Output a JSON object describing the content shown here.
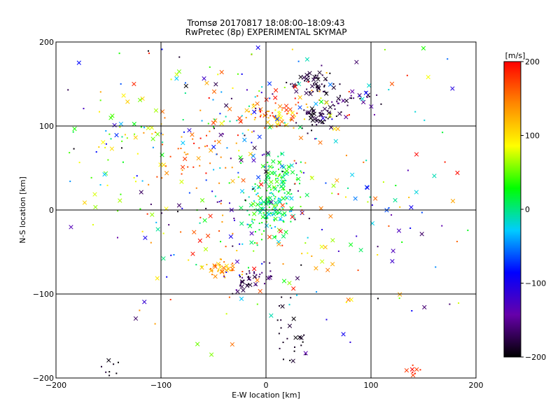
{
  "chart_data": {
    "type": "scatter",
    "title": "Tromsø 20170817 18:08:00–18:09:43",
    "subtitle": "RwPretec (8p) EXPERIMENTAL SKYMAP",
    "xlabel": "E-W location [km]",
    "ylabel": "N-S location [km]",
    "xlim": [
      -200,
      200
    ],
    "ylim": [
      -200,
      200
    ],
    "xticks": [
      -200,
      -100,
      0,
      100,
      200
    ],
    "yticks": [
      -200,
      -100,
      0,
      100,
      200
    ],
    "grid": true,
    "colorbar": {
      "label": "[m/s]",
      "min": -200,
      "max": 200,
      "ticks": [
        200,
        100,
        0,
        -100,
        -200
      ],
      "colors": [
        "#000000",
        "#6600aa",
        "#0000ff",
        "#00ccff",
        "#00ff00",
        "#ffff00",
        "#ff8800",
        "#ff0000"
      ]
    },
    "clusters": [
      {
        "cx": 5,
        "cy": 5,
        "sx": 12,
        "sy": 18,
        "n": 160,
        "vmin": -40,
        "vmax": 60
      },
      {
        "cx": 45,
        "cy": 150,
        "sx": 10,
        "sy": 6,
        "n": 50,
        "vmin": -200,
        "vmax": -170
      },
      {
        "cx": 50,
        "cy": 110,
        "sx": 10,
        "sy": 8,
        "n": 50,
        "vmin": -200,
        "vmax": -170
      },
      {
        "cx": 80,
        "cy": 135,
        "sx": 12,
        "sy": 8,
        "n": 30,
        "vmin": -200,
        "vmax": -140
      },
      {
        "cx": 10,
        "cy": 115,
        "sx": 15,
        "sy": 10,
        "n": 70,
        "vmin": 80,
        "vmax": 200
      },
      {
        "cx": 15,
        "cy": 45,
        "sx": 12,
        "sy": 10,
        "n": 50,
        "vmin": -20,
        "vmax": 60
      },
      {
        "cx": -40,
        "cy": -70,
        "sx": 8,
        "sy": 6,
        "n": 35,
        "vmin": 100,
        "vmax": 180
      },
      {
        "cx": -15,
        "cy": -80,
        "sx": 10,
        "sy": 8,
        "n": 40,
        "vmin": -200,
        "vmax": -150
      },
      {
        "cx": -70,
        "cy": 70,
        "sx": 20,
        "sy": 25,
        "n": 40,
        "vmin": 120,
        "vmax": 200
      },
      {
        "cx": -140,
        "cy": 70,
        "sx": 25,
        "sy": 40,
        "n": 40,
        "vmin": 20,
        "vmax": 110
      },
      {
        "cx": 20,
        "cy": -150,
        "sx": 8,
        "sy": 25,
        "n": 25,
        "vmin": -200,
        "vmax": -180
      },
      {
        "cx": -150,
        "cy": -185,
        "sx": 6,
        "sy": 6,
        "n": 8,
        "vmin": -200,
        "vmax": -180
      },
      {
        "cx": 140,
        "cy": -190,
        "sx": 5,
        "sy": 5,
        "n": 8,
        "vmin": 170,
        "vmax": 200
      },
      {
        "cx": 0,
        "cy": 50,
        "sx": 90,
        "sy": 90,
        "n": 450,
        "vmin": -200,
        "vmax": 200
      }
    ]
  }
}
